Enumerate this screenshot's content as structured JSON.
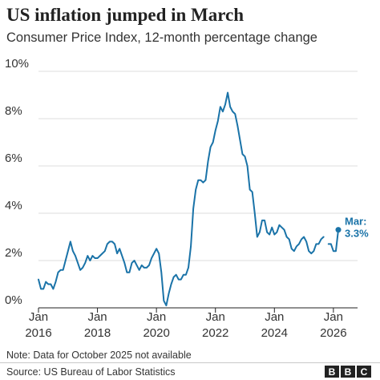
{
  "chart_data": {
    "type": "line",
    "title": "US inflation jumped in March",
    "subtitle": "Consumer Price Index, 12-month percentage change",
    "xlabel": "",
    "ylabel": "",
    "ylim": [
      0,
      10
    ],
    "xlim": [
      "2016-01",
      "2026-03"
    ],
    "grid": true,
    "y_ticks": [
      {
        "value": 0,
        "label": "0%"
      },
      {
        "value": 2,
        "label": "2%"
      },
      {
        "value": 4,
        "label": "4%"
      },
      {
        "value": 6,
        "label": "6%"
      },
      {
        "value": 8,
        "label": "8%"
      },
      {
        "value": 10,
        "label": "10%"
      }
    ],
    "x_ticks": [
      {
        "date": "2016-01",
        "month": "Jan",
        "year": "2016"
      },
      {
        "date": "2018-01",
        "month": "Jan",
        "year": "2018"
      },
      {
        "date": "2020-01",
        "month": "Jan",
        "year": "2020"
      },
      {
        "date": "2022-01",
        "month": "Jan",
        "year": "2022"
      },
      {
        "date": "2024-01",
        "month": "Jan",
        "year": "2024"
      },
      {
        "date": "2026-01",
        "month": "Jan",
        "year": "2026"
      }
    ],
    "series": [
      {
        "color": "#1a73a8",
        "points": [
          [
            "2016-01",
            1.2
          ],
          [
            "2016-02",
            0.8
          ],
          [
            "2016-03",
            0.8
          ],
          [
            "2016-04",
            1.1
          ],
          [
            "2016-05",
            1.0
          ],
          [
            "2016-06",
            1.0
          ],
          [
            "2016-07",
            0.8
          ],
          [
            "2016-08",
            1.1
          ],
          [
            "2016-09",
            1.5
          ],
          [
            "2016-10",
            1.6
          ],
          [
            "2016-11",
            1.6
          ],
          [
            "2016-12",
            2.0
          ],
          [
            "2017-01",
            2.4
          ],
          [
            "2017-02",
            2.8
          ],
          [
            "2017-03",
            2.4
          ],
          [
            "2017-04",
            2.2
          ],
          [
            "2017-05",
            1.9
          ],
          [
            "2017-06",
            1.6
          ],
          [
            "2017-07",
            1.7
          ],
          [
            "2017-08",
            1.9
          ],
          [
            "2017-09",
            2.2
          ],
          [
            "2017-10",
            2.0
          ],
          [
            "2017-11",
            2.2
          ],
          [
            "2017-12",
            2.1
          ],
          [
            "2018-01",
            2.1
          ],
          [
            "2018-02",
            2.2
          ],
          [
            "2018-03",
            2.3
          ],
          [
            "2018-04",
            2.4
          ],
          [
            "2018-05",
            2.7
          ],
          [
            "2018-06",
            2.8
          ],
          [
            "2018-07",
            2.8
          ],
          [
            "2018-08",
            2.7
          ],
          [
            "2018-09",
            2.3
          ],
          [
            "2018-10",
            2.5
          ],
          [
            "2018-11",
            2.2
          ],
          [
            "2018-12",
            1.9
          ],
          [
            "2019-01",
            1.5
          ],
          [
            "2019-02",
            1.5
          ],
          [
            "2019-03",
            1.9
          ],
          [
            "2019-04",
            2.0
          ],
          [
            "2019-05",
            1.8
          ],
          [
            "2019-06",
            1.6
          ],
          [
            "2019-07",
            1.8
          ],
          [
            "2019-08",
            1.7
          ],
          [
            "2019-09",
            1.7
          ],
          [
            "2019-10",
            1.8
          ],
          [
            "2019-11",
            2.1
          ],
          [
            "2019-12",
            2.3
          ],
          [
            "2020-01",
            2.5
          ],
          [
            "2020-02",
            2.3
          ],
          [
            "2020-03",
            1.5
          ],
          [
            "2020-04",
            0.3
          ],
          [
            "2020-05",
            0.1
          ],
          [
            "2020-06",
            0.6
          ],
          [
            "2020-07",
            1.0
          ],
          [
            "2020-08",
            1.3
          ],
          [
            "2020-09",
            1.4
          ],
          [
            "2020-10",
            1.2
          ],
          [
            "2020-11",
            1.2
          ],
          [
            "2020-12",
            1.4
          ],
          [
            "2021-01",
            1.4
          ],
          [
            "2021-02",
            1.7
          ],
          [
            "2021-03",
            2.6
          ],
          [
            "2021-04",
            4.2
          ],
          [
            "2021-05",
            5.0
          ],
          [
            "2021-06",
            5.4
          ],
          [
            "2021-07",
            5.4
          ],
          [
            "2021-08",
            5.3
          ],
          [
            "2021-09",
            5.4
          ],
          [
            "2021-10",
            6.2
          ],
          [
            "2021-11",
            6.8
          ],
          [
            "2021-12",
            7.0
          ],
          [
            "2022-01",
            7.5
          ],
          [
            "2022-02",
            7.9
          ],
          [
            "2022-03",
            8.5
          ],
          [
            "2022-04",
            8.3
          ],
          [
            "2022-05",
            8.6
          ],
          [
            "2022-06",
            9.1
          ],
          [
            "2022-07",
            8.5
          ],
          [
            "2022-08",
            8.3
          ],
          [
            "2022-09",
            8.2
          ],
          [
            "2022-10",
            7.7
          ],
          [
            "2022-11",
            7.1
          ],
          [
            "2022-12",
            6.5
          ],
          [
            "2023-01",
            6.4
          ],
          [
            "2023-02",
            6.0
          ],
          [
            "2023-03",
            5.0
          ],
          [
            "2023-04",
            4.9
          ],
          [
            "2023-05",
            4.0
          ],
          [
            "2023-06",
            3.0
          ],
          [
            "2023-07",
            3.2
          ],
          [
            "2023-08",
            3.7
          ],
          [
            "2023-09",
            3.7
          ],
          [
            "2023-10",
            3.2
          ],
          [
            "2023-11",
            3.1
          ],
          [
            "2023-12",
            3.4
          ],
          [
            "2024-01",
            3.1
          ],
          [
            "2024-02",
            3.2
          ],
          [
            "2024-03",
            3.5
          ],
          [
            "2024-04",
            3.4
          ],
          [
            "2024-05",
            3.3
          ],
          [
            "2024-06",
            3.0
          ],
          [
            "2024-07",
            2.9
          ],
          [
            "2024-08",
            2.5
          ],
          [
            "2024-09",
            2.4
          ],
          [
            "2024-10",
            2.6
          ],
          [
            "2024-11",
            2.7
          ],
          [
            "2024-12",
            2.9
          ],
          [
            "2025-01",
            3.0
          ],
          [
            "2025-02",
            2.8
          ],
          [
            "2025-03",
            2.4
          ],
          [
            "2025-04",
            2.3
          ],
          [
            "2025-05",
            2.4
          ],
          [
            "2025-06",
            2.7
          ],
          [
            "2025-07",
            2.7
          ],
          [
            "2025-08",
            2.9
          ],
          [
            "2025-09",
            3.0
          ],
          [
            "2025-10",
            null
          ],
          [
            "2025-11",
            2.7
          ],
          [
            "2025-12",
            2.7
          ],
          [
            "2026-01",
            2.4
          ],
          [
            "2026-02",
            2.4
          ],
          [
            "2026-03",
            3.3
          ]
        ]
      }
    ],
    "annotation": {
      "date": "2026-03",
      "value": 3.3,
      "line1": "Mar:",
      "line2": "3.3%"
    },
    "legend": "none"
  },
  "note": "Note: Data for October 2025 not available",
  "source": "Source: US Bureau of Labor Statistics",
  "logo": {
    "letters": [
      "B",
      "B",
      "C"
    ]
  }
}
